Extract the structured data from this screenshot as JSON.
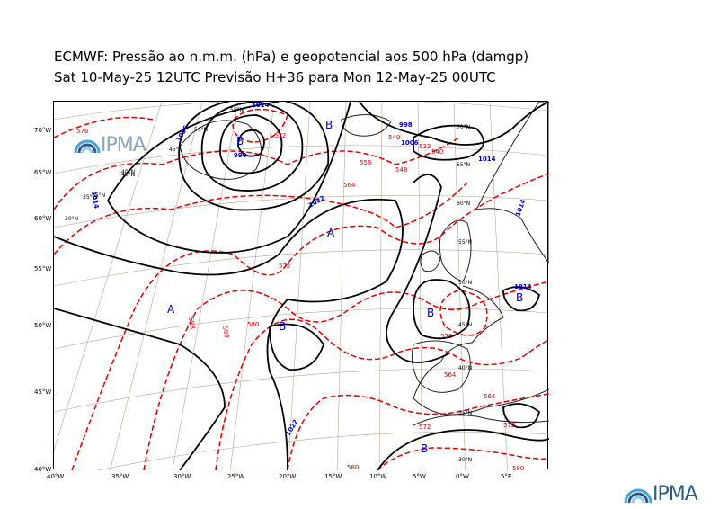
{
  "title": {
    "line1": "ECMWF:  Pressão ao n.m.m. (hPa) e geopotencial aos 500 hPa (damgp)",
    "line2": "Sat 10-May-25 12UTC Previsão H+36 para Mon 12-May-25 00UTC"
  },
  "brand": {
    "name": "IPMA",
    "color": "#2a5b8a",
    "accent": "#4aa3d8"
  },
  "map": {
    "colors": {
      "isobar": "#000000",
      "geopotential": "#e00000",
      "isobar_label": "#0000cc",
      "land": "#222222",
      "grid": "#b8a88a"
    },
    "left_labels": [
      "70°W",
      "65°W",
      "60°W",
      "55°W",
      "50°W",
      "45°W",
      "40°W"
    ],
    "bottom_labels": [
      "40°W",
      "35°W",
      "30°W",
      "25°W",
      "20°W",
      "15°W",
      "10°W",
      "5°W",
      "0°W",
      "5°E"
    ],
    "grid_labels": [
      "55°N",
      "50°N",
      "45°N",
      "40°N",
      "35°N",
      "30°N",
      "70°N",
      "65°N",
      "60°N",
      "55°N",
      "50°N",
      "45°N",
      "40°N",
      "35°N",
      "30°N",
      "40°N",
      "35°W"
    ],
    "pressure_centers": [
      {
        "type": "B",
        "label": "B"
      },
      {
        "type": "B",
        "label": "B"
      },
      {
        "type": "A",
        "label": "A"
      },
      {
        "type": "A",
        "label": "A"
      },
      {
        "type": "B",
        "label": "B"
      },
      {
        "type": "B",
        "label": "B"
      },
      {
        "type": "B",
        "label": "B"
      },
      {
        "type": "B",
        "label": "B"
      }
    ],
    "isobar_values": [
      "1014",
      "990",
      "1006",
      "998",
      "1006",
      "1014",
      "1022",
      "1014",
      "1022",
      "1014",
      "1014"
    ],
    "geopotential_values": [
      "576",
      "532",
      "540",
      "548",
      "556",
      "564",
      "572",
      "580",
      "588",
      "588",
      "556",
      "564",
      "572",
      "580",
      "564",
      "572",
      "580",
      "532",
      "540"
    ]
  }
}
